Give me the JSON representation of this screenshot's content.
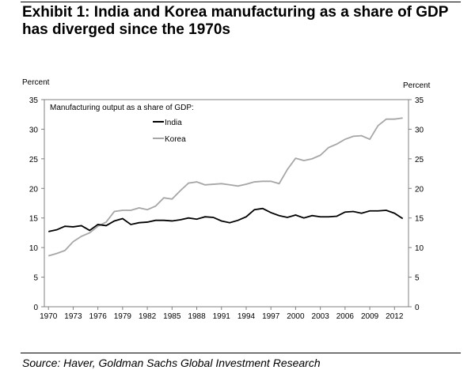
{
  "title": "Exhibit 1: India and Korea manufacturing as a share of GDP has diverged since the 1970s",
  "source": "Source: Haver, Goldman Sachs Global Investment Research",
  "chart_data": {
    "type": "line",
    "subtitle": "Manufacturing output as a share of GDP:",
    "ylabel_left": "Percent",
    "ylabel_right": "Percent",
    "ylim": [
      0,
      35
    ],
    "yticks": [
      0,
      5,
      10,
      15,
      20,
      25,
      30,
      35
    ],
    "xticks": [
      "1970",
      "1973",
      "1976",
      "1979",
      "1982",
      "1985",
      "1988",
      "1991",
      "1994",
      "1997",
      "2000",
      "2003",
      "2006",
      "2009",
      "2012"
    ],
    "x": [
      1970,
      1971,
      1972,
      1973,
      1974,
      1975,
      1976,
      1977,
      1978,
      1979,
      1980,
      1981,
      1982,
      1983,
      1984,
      1985,
      1986,
      1987,
      1988,
      1989,
      1990,
      1991,
      1992,
      1993,
      1994,
      1995,
      1996,
      1997,
      1998,
      1999,
      2000,
      2001,
      2002,
      2003,
      2004,
      2005,
      2006,
      2007,
      2008,
      2009,
      2010,
      2011,
      2012,
      2013
    ],
    "legend_position": "top-left",
    "grid": false,
    "series": [
      {
        "name": "India",
        "color": "#000000",
        "values": [
          12.7,
          13.0,
          13.6,
          13.5,
          13.7,
          12.9,
          13.9,
          13.7,
          14.5,
          14.9,
          13.9,
          14.2,
          14.3,
          14.6,
          14.6,
          14.5,
          14.7,
          15.0,
          14.8,
          15.2,
          15.1,
          14.5,
          14.2,
          14.6,
          15.2,
          16.4,
          16.6,
          15.9,
          15.4,
          15.1,
          15.5,
          15.0,
          15.4,
          15.2,
          15.2,
          15.3,
          16.0,
          16.1,
          15.8,
          16.2,
          16.2,
          16.3,
          15.8,
          14.9
        ]
      },
      {
        "name": "Korea",
        "color": "#a6a6a6",
        "values": [
          8.6,
          9.0,
          9.5,
          11.0,
          11.9,
          12.5,
          13.6,
          14.3,
          16.1,
          16.3,
          16.3,
          16.7,
          16.4,
          17.0,
          18.4,
          18.2,
          19.6,
          20.9,
          21.1,
          20.6,
          20.7,
          20.8,
          20.6,
          20.4,
          20.7,
          21.1,
          21.2,
          21.2,
          20.8,
          23.2,
          25.1,
          24.7,
          25.0,
          25.6,
          26.9,
          27.5,
          28.3,
          28.8,
          28.9,
          28.3,
          30.6,
          31.7,
          31.7,
          31.9
        ]
      }
    ]
  }
}
